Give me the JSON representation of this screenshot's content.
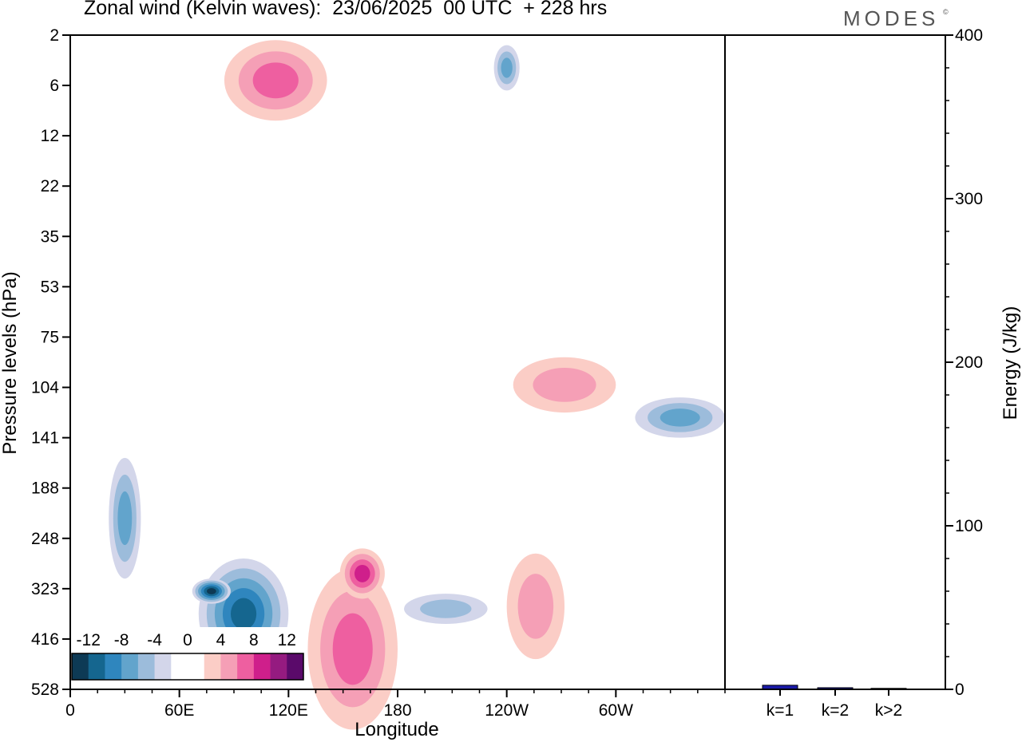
{
  "header": {
    "title": "Zonal wind (Kelvin waves):  23/06/2025  00 UTC  + 228 hrs",
    "brand": "MODES",
    "brand_mark": "©"
  },
  "chart_data": [
    {
      "type": "heatmap",
      "description_free": true,
      "xlabel": "Longitude",
      "ylabel": "Pressure levels (hPa)",
      "x_ticks": [
        "0",
        "60E",
        "120E",
        "180",
        "120W",
        "60W"
      ],
      "x_tick_degrees_east": [
        0,
        60,
        120,
        180,
        240,
        300
      ],
      "x_range_degrees_east": [
        0,
        360
      ],
      "y_ticks": [
        "2",
        "6",
        "12",
        "22",
        "35",
        "53",
        "75",
        "104",
        "141",
        "188",
        "248",
        "323",
        "416",
        "528"
      ],
      "y_scale": "level index (top = 2 hPa, bottom = 528 hPa)",
      "colorbar": {
        "labels": [
          "-12",
          "-8",
          "-4",
          "0",
          "4",
          "8",
          "12"
        ],
        "colors": [
          "#0d3a55",
          "#15668f",
          "#2f86be",
          "#62a4cc",
          "#9cbcdb",
          "#d3d6ea",
          "#ffffff",
          "#ffffff",
          "#fbcdc6",
          "#f59fb6",
          "#ee5fa0",
          "#cf1f8b",
          "#951b80",
          "#5a0a6a"
        ]
      },
      "shading_palette": {
        "neg_1": "#d3d6ea",
        "neg_2": "#9cbcdb",
        "neg_3": "#62a4cc",
        "neg_4": "#2f86be",
        "neg_5": "#15668f",
        "neg_6": "#0d3a55",
        "pos_1": "#fbcdc6",
        "pos_2": "#f59fb6",
        "pos_3": "#ee5fa0",
        "pos_4": "#cf1f8b",
        "pos_5": "#951b80"
      },
      "features": [
        {
          "lon": [
            100,
            170
          ],
          "lev": [
            10.4,
            12.6
          ],
          "sign": -1,
          "peak": 5
        },
        {
          "lon": [
            95,
            125
          ],
          "lev": [
            10.8,
            11.3
          ],
          "sign": -1,
          "peak": 6
        },
        {
          "lon": [
            260,
            325
          ],
          "lev": [
            11.1,
            11.7
          ],
          "sign": -1,
          "peak": 2
        },
        {
          "lon": [
            185,
            255
          ],
          "lev": [
            10.6,
            13.8
          ],
          "sign": 1,
          "peak": 3
        },
        {
          "lon": [
            210,
            245
          ],
          "lev": [
            10.2,
            11.2
          ],
          "sign": 1,
          "peak": 4
        },
        {
          "lon": [
            340,
            385
          ],
          "lev": [
            10.3,
            12.4
          ],
          "sign": 1,
          "peak": 2
        },
        {
          "lon": [
            440,
            510
          ],
          "lev": [
            7.2,
            8.0
          ],
          "sign": -1,
          "peak": 3
        },
        {
          "lon": [
            345,
            425
          ],
          "lev": [
            6.4,
            7.5
          ],
          "sign": 1,
          "peak": 2
        },
        {
          "lon": [
            120,
            200
          ],
          "lev": [
            0.1,
            1.7
          ],
          "sign": 1,
          "peak": 3
        },
        {
          "lon": [
            330,
            350
          ],
          "lev": [
            0.2,
            1.1
          ],
          "sign": -1,
          "peak": 3
        },
        {
          "lon": [
            30,
            55
          ],
          "lev": [
            8.4,
            10.8
          ],
          "sign": -1,
          "peak": 3
        }
      ]
    },
    {
      "type": "bar",
      "categories": [
        "k=1",
        "k=2",
        "k>2"
      ],
      "values": [
        2.5,
        1.0,
        0.6
      ],
      "ylabel": "Energy (J/kg)",
      "ylim": [
        0,
        400
      ],
      "y_ticks": [
        "0",
        "100",
        "200",
        "300",
        "400"
      ],
      "colors": [
        "#1a1aa8",
        "#1a1aa8",
        "#1a1aa8"
      ]
    }
  ]
}
